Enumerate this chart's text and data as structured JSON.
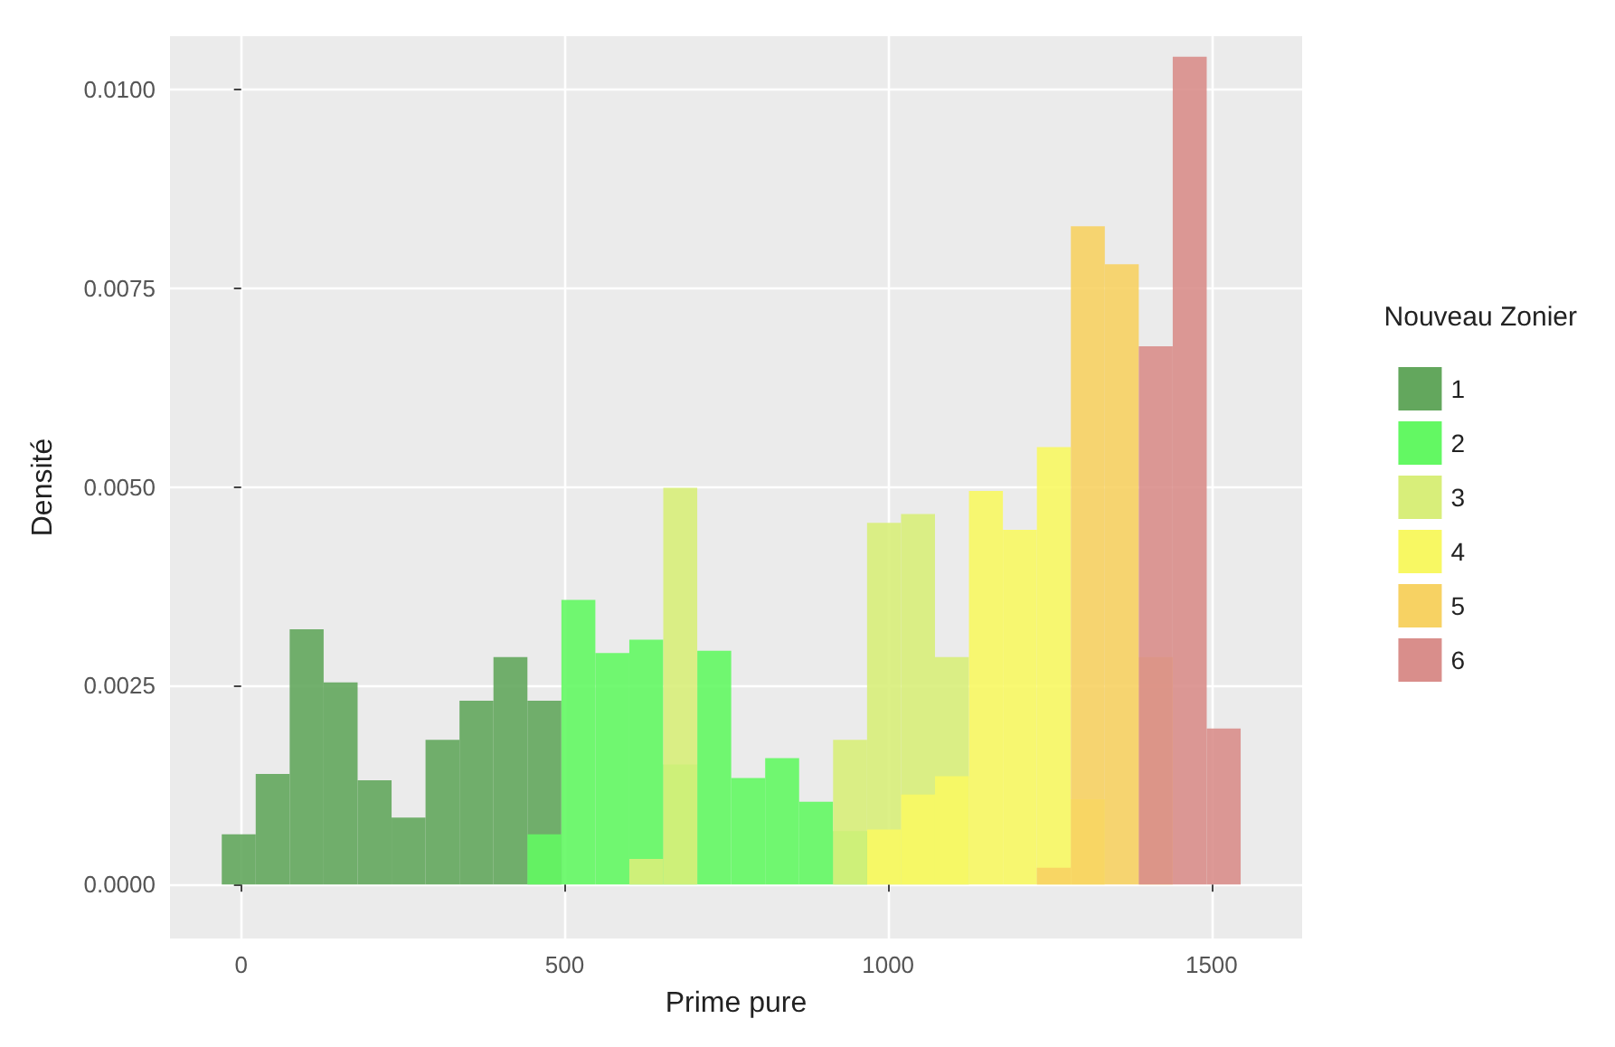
{
  "chart_data": {
    "type": "histogram",
    "xlabel": "Prime pure",
    "ylabel": "Densité",
    "legend_title": "Nouveau Zonier",
    "legend": "right",
    "bins": [
      -30,
      22.5,
      75,
      127.5,
      180,
      232.5,
      285,
      337.5,
      390,
      442.5,
      495,
      547.5,
      600,
      652.5,
      705,
      757.5,
      810,
      862.5,
      915,
      967.5,
      1020,
      1072.5,
      1125,
      1177.5,
      1230,
      1282.5,
      1335,
      1387.5,
      1440,
      1492.5,
      1545
    ],
    "series": [
      {
        "name": "1",
        "color": "#63a75d",
        "values": [
          0.00063,
          0.00139,
          0.00321,
          0.00254,
          0.00131,
          0.00084,
          0.00182,
          0.00231,
          0.00286,
          0.00231,
          null,
          null,
          null,
          null,
          null,
          null,
          null,
          null,
          null,
          null,
          null,
          null,
          null,
          null,
          null,
          null,
          null,
          null,
          null,
          null
        ]
      },
      {
        "name": "2",
        "color": "#63f863",
        "values": [
          null,
          null,
          null,
          null,
          null,
          null,
          null,
          null,
          null,
          0.00063,
          0.00358,
          0.00291,
          0.00308,
          0.00151,
          0.00294,
          0.00134,
          0.00159,
          0.00104,
          0.00067,
          null,
          null,
          null,
          null,
          null,
          null,
          null,
          null,
          null,
          null,
          null
        ]
      },
      {
        "name": "3",
        "color": "#d8ee7a",
        "values": [
          null,
          null,
          null,
          null,
          null,
          null,
          null,
          null,
          null,
          null,
          null,
          null,
          0.00032,
          0.00499,
          null,
          null,
          null,
          null,
          0.00182,
          0.00455,
          0.00466,
          0.00286,
          null,
          null,
          null,
          null,
          null,
          null,
          null,
          null
        ]
      },
      {
        "name": "4",
        "color": "#f8f863",
        "values": [
          null,
          null,
          null,
          null,
          null,
          null,
          null,
          null,
          null,
          null,
          null,
          null,
          null,
          null,
          null,
          null,
          null,
          null,
          null,
          0.00069,
          0.00113,
          0.00136,
          0.00495,
          0.00446,
          0.0055,
          0.00107,
          null,
          null,
          null,
          null
        ]
      },
      {
        "name": "5",
        "color": "#f7d263",
        "values": [
          null,
          null,
          null,
          null,
          null,
          null,
          null,
          null,
          null,
          null,
          null,
          null,
          null,
          null,
          null,
          null,
          null,
          null,
          null,
          null,
          null,
          null,
          null,
          null,
          0.00021,
          0.00828,
          0.0078,
          0.00286,
          null,
          null
        ]
      },
      {
        "name": "6",
        "color": "#d98e8b",
        "values": [
          null,
          null,
          null,
          null,
          null,
          null,
          null,
          null,
          null,
          null,
          null,
          null,
          null,
          null,
          null,
          null,
          null,
          null,
          null,
          null,
          null,
          null,
          null,
          null,
          null,
          null,
          null,
          0.00677,
          0.01041,
          0.00196
        ]
      }
    ],
    "xlim": [
      -110,
      1640
    ],
    "ylim": [
      -0.00068,
      0.01067
    ],
    "xticks": [
      0,
      500,
      1000,
      1500
    ],
    "yticks": [
      {
        "value": 0,
        "label": "0.0000"
      },
      {
        "value": 0.0025,
        "label": "0.0025"
      },
      {
        "value": 0.005,
        "label": "0.0050"
      },
      {
        "value": 0.0075,
        "label": "0.0075"
      },
      {
        "value": 0.01,
        "label": "0.0100"
      }
    ],
    "grid": true
  }
}
